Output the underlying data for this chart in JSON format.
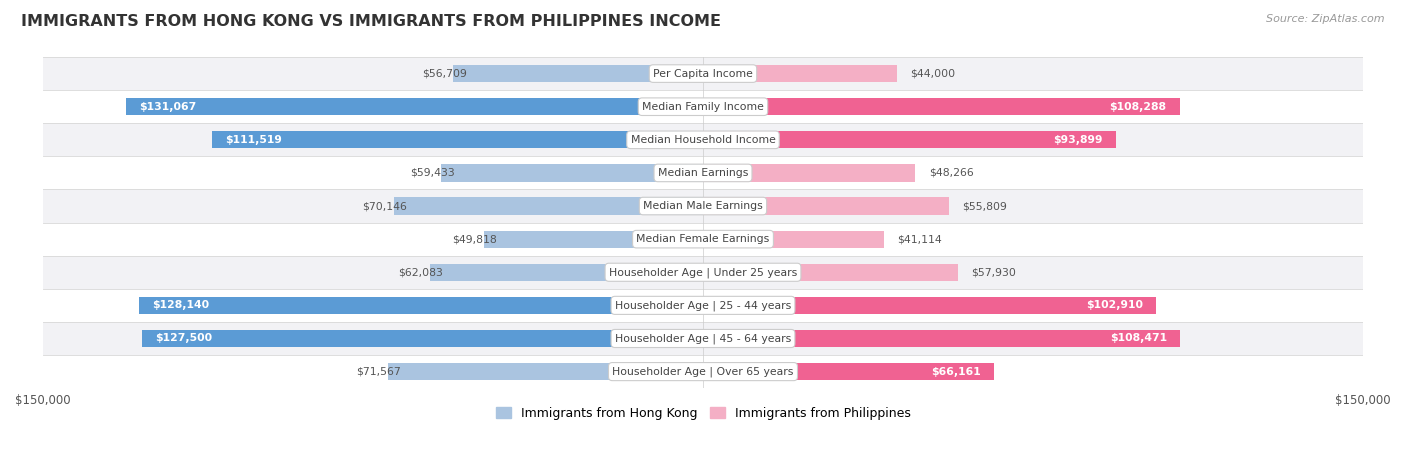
{
  "title": "IMMIGRANTS FROM HONG KONG VS IMMIGRANTS FROM PHILIPPINES INCOME",
  "source": "Source: ZipAtlas.com",
  "categories": [
    "Per Capita Income",
    "Median Family Income",
    "Median Household Income",
    "Median Earnings",
    "Median Male Earnings",
    "Median Female Earnings",
    "Householder Age | Under 25 years",
    "Householder Age | 25 - 44 years",
    "Householder Age | 45 - 64 years",
    "Householder Age | Over 65 years"
  ],
  "hk_values": [
    56709,
    131067,
    111519,
    59433,
    70146,
    49818,
    62083,
    128140,
    127500,
    71567
  ],
  "ph_values": [
    44000,
    108288,
    93899,
    48266,
    55809,
    41114,
    57930,
    102910,
    108471,
    66161
  ],
  "hk_labels": [
    "$56,709",
    "$131,067",
    "$111,519",
    "$59,433",
    "$70,146",
    "$49,818",
    "$62,083",
    "$128,140",
    "$127,500",
    "$71,567"
  ],
  "ph_labels": [
    "$44,000",
    "$108,288",
    "$93,899",
    "$48,266",
    "$55,809",
    "$41,114",
    "$57,930",
    "$102,910",
    "$108,471",
    "$66,161"
  ],
  "max_value": 150000,
  "hk_color_light": "#aac4e0",
  "hk_color_dark": "#5b9bd5",
  "ph_color_light": "#f4afc5",
  "ph_color_dark": "#f06292",
  "hk_inside_threshold": 80000,
  "ph_inside_threshold": 65000,
  "row_bg_even": "#f2f2f5",
  "row_bg_odd": "#ffffff",
  "legend_hk": "Immigrants from Hong Kong",
  "legend_ph": "Immigrants from Philippines",
  "bar_height": 0.52
}
